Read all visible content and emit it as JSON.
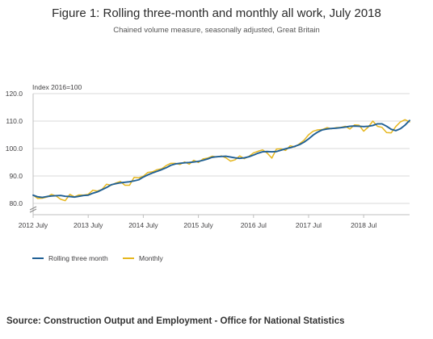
{
  "chart_data": {
    "type": "line",
    "title": "Figure 1: Rolling three-month and monthly all work, July 2018",
    "subtitle": "Chained volume measure, seasonally adjusted, Great Britain",
    "ylabel": "Index 2016=100",
    "xlabel": "",
    "ylim": [
      80,
      120
    ],
    "y_axis_break": true,
    "yticks": [
      "80.0",
      "90.0",
      "100.0",
      "110.0",
      "120.0"
    ],
    "x_tick_labels": [
      "2012 July",
      "2013 July",
      "2014 July",
      "2015 July",
      "2016 Jul",
      "2017 Jul",
      "2018 Jul"
    ],
    "grid": true,
    "legend": "bottom-left",
    "x_start": "2012 July",
    "x_end": "2018 Jul",
    "series": [
      {
        "name": "Rolling three month",
        "color": "#206095",
        "values": [
          83.0,
          82.4,
          82.2,
          82.5,
          82.7,
          82.8,
          82.9,
          82.6,
          82.5,
          82.3,
          82.6,
          82.9,
          83.0,
          83.7,
          84.2,
          85.0,
          85.8,
          86.8,
          87.2,
          87.5,
          87.7,
          87.9,
          88.2,
          88.6,
          89.6,
          90.4,
          91.1,
          91.7,
          92.3,
          93.0,
          93.9,
          94.4,
          94.6,
          94.8,
          94.9,
          95.1,
          95.3,
          95.7,
          96.2,
          96.8,
          97.0,
          97.1,
          97.2,
          96.9,
          96.6,
          96.4,
          96.6,
          97.0,
          97.6,
          98.3,
          98.8,
          98.9,
          98.8,
          98.9,
          99.4,
          99.9,
          100.3,
          100.8,
          101.4,
          102.3,
          103.5,
          104.9,
          106.0,
          106.8,
          107.1,
          107.3,
          107.4,
          107.6,
          107.8,
          108.1,
          108.2,
          108.1,
          108.0,
          108.1,
          108.4,
          109.0,
          109.0,
          108.1,
          107.0,
          106.5,
          107.2,
          108.5,
          110.2
        ]
      },
      {
        "name": "Monthly",
        "color": "#e6b71e",
        "values": [
          83.0,
          81.8,
          81.9,
          82.3,
          83.3,
          82.7,
          81.5,
          81.0,
          83.3,
          82.4,
          83.1,
          83.0,
          83.3,
          84.8,
          84.5,
          85.1,
          87.0,
          86.6,
          87.4,
          88.0,
          86.6,
          86.6,
          89.5,
          89.3,
          89.9,
          91.3,
          91.5,
          92.3,
          92.6,
          93.8,
          94.6,
          94.6,
          94.2,
          95.1,
          94.3,
          95.7,
          94.9,
          96.2,
          96.5,
          97.2,
          96.9,
          97.3,
          96.6,
          95.4,
          95.9,
          97.3,
          96.3,
          97.1,
          98.4,
          99.0,
          99.5,
          98.3,
          96.5,
          99.8,
          99.9,
          99.3,
          101.0,
          100.6,
          101.7,
          103.0,
          105.0,
          106.3,
          106.8,
          106.9,
          107.6,
          107.2,
          107.6,
          107.7,
          108.1,
          107.1,
          108.6,
          108.5,
          106.3,
          107.8,
          110.0,
          108.1,
          107.7,
          105.8,
          105.7,
          108.0,
          109.7,
          110.5,
          109.7
        ]
      }
    ]
  },
  "source": "Source: Construction Output and Employment - Office for National Statistics"
}
